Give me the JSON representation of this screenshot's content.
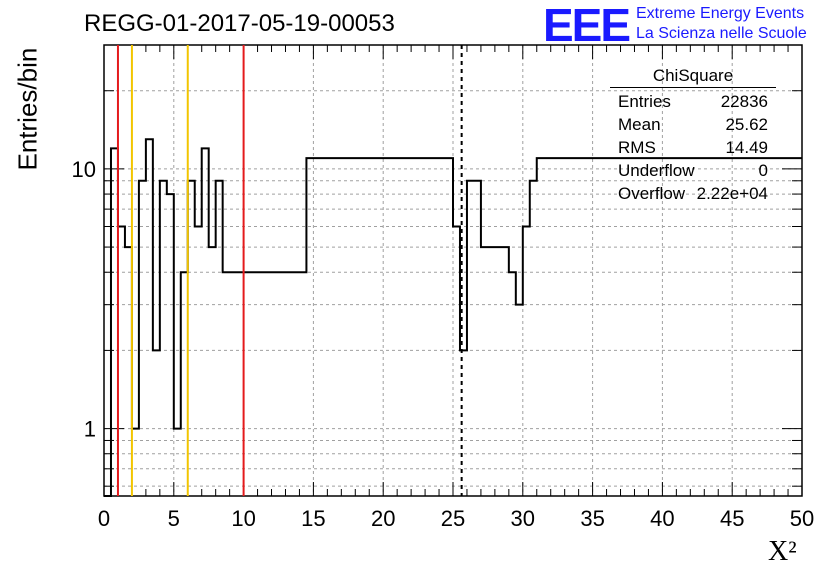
{
  "header": {
    "run_title": "REGG-01-2017-05-19-00053",
    "logo_text": "EEE",
    "logo_line1": "Extreme Energy Events",
    "logo_line2": "La Scienza nelle Scuole"
  },
  "stats_box": {
    "title": "ChiSquare",
    "rows": [
      {
        "key": "Entries",
        "value": "22836"
      },
      {
        "key": "Mean",
        "value": "25.62"
      },
      {
        "key": "RMS",
        "value": "14.49"
      },
      {
        "key": "Underflow",
        "value": "0"
      },
      {
        "key": "Overflow",
        "value": "2.22e+04"
      }
    ]
  },
  "colors": {
    "red_line": "#e41a1c",
    "yellow_line": "#f2c500",
    "grid": "#a0a0a0",
    "histogram": "#000000"
  },
  "chart_data": {
    "type": "histogram",
    "title": "REGG-01-2017-05-19-00053",
    "xlabel": "X²",
    "ylabel": "Entries/bin",
    "xlim": [
      0,
      50
    ],
    "ylim": [
      0.55,
      30
    ],
    "yscale": "log",
    "bin_width": 0.5,
    "grid": true,
    "x_ticks": [
      0,
      5,
      10,
      15,
      20,
      25,
      30,
      35,
      40,
      45,
      50
    ],
    "y_ticks": [
      1,
      10
    ],
    "bin_values": [
      0.3,
      12,
      6,
      5,
      1,
      9,
      13,
      2,
      9,
      8,
      1,
      4,
      9,
      6,
      12,
      5,
      9,
      4,
      4,
      4,
      4,
      4,
      4,
      4,
      4,
      4,
      4,
      4,
      4,
      11,
      11,
      11,
      11,
      11,
      11,
      11,
      11,
      11,
      11,
      11,
      11,
      11,
      11,
      11,
      11,
      11,
      11,
      11,
      11,
      11,
      6,
      2,
      9,
      9,
      5,
      5,
      5,
      5,
      4,
      3,
      6,
      9,
      11,
      11,
      11,
      11,
      11,
      11,
      11,
      11,
      11,
      11,
      11,
      11,
      11,
      11,
      11,
      11,
      11,
      11,
      11,
      11,
      11,
      11,
      11,
      11,
      11,
      11,
      11,
      11,
      11,
      11,
      11,
      11,
      11,
      11,
      11,
      11,
      11,
      11
    ],
    "vertical_markers": [
      {
        "x": 1,
        "color": "red",
        "style": "solid"
      },
      {
        "x": 2,
        "color": "yellow",
        "style": "solid"
      },
      {
        "x": 6,
        "color": "yellow",
        "style": "solid"
      },
      {
        "x": 10,
        "color": "red",
        "style": "solid"
      },
      {
        "x": 25.62,
        "color": "black",
        "style": "dashed"
      }
    ]
  }
}
